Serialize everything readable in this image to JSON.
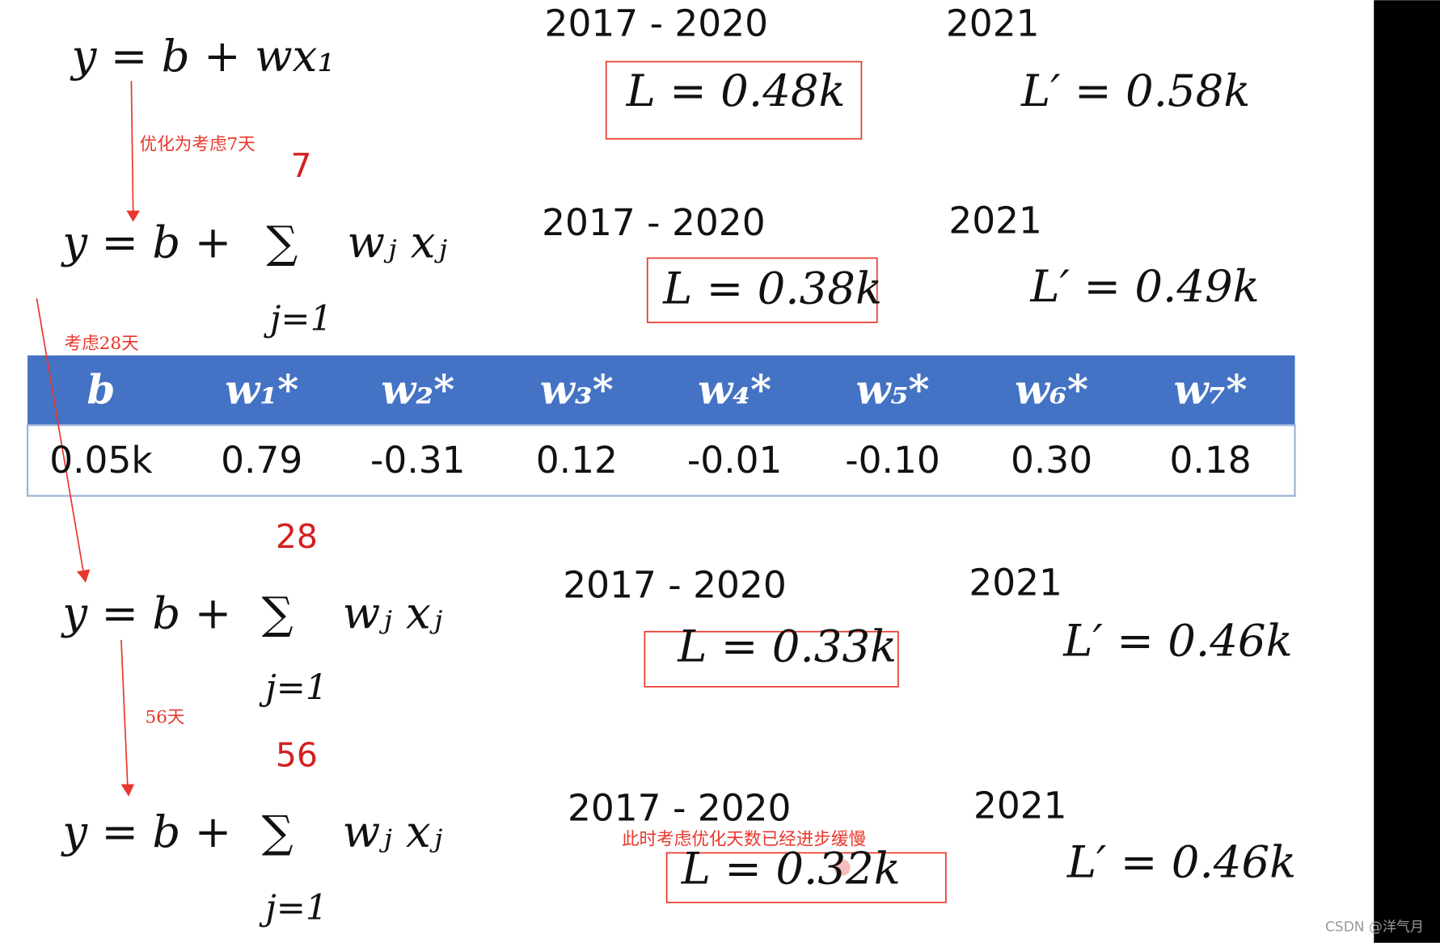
{
  "formulas": [
    {
      "equation": "y = b + wx₁",
      "period": "2017 - 2020",
      "train_loss": "L = 0.48k",
      "year": "2021",
      "test_loss": "L′ = 0.58k"
    },
    {
      "lhs": "y = b +",
      "sum": "∑",
      "upper": "7",
      "lower": "j=1",
      "term": "wⱼ xⱼ",
      "period": "2017 - 2020",
      "train_loss": "L = 0.38k",
      "year": "2021",
      "test_loss": "L′ = 0.49k"
    },
    {
      "lhs": "y = b +",
      "sum": "∑",
      "upper": "28",
      "lower": "j=1",
      "term": "wⱼ xⱼ",
      "period": "2017 - 2020",
      "train_loss": "L = 0.33k",
      "year": "2021",
      "test_loss": "L′ = 0.46k"
    },
    {
      "lhs": "y = b +",
      "sum": "∑",
      "upper": "56",
      "lower": "j=1",
      "term": "wⱼ xⱼ",
      "period": "2017 - 2020",
      "train_loss": "L = 0.32k",
      "year": "2021",
      "test_loss": "L′ = 0.46k"
    }
  ],
  "annotations": [
    "优化为考虑7天",
    "考虑28天",
    "56天",
    "此时考虑优化天数已经进步缓慢"
  ],
  "table": {
    "header": [
      "b",
      "w₁*",
      "w₂*",
      "w₃*",
      "w₄*",
      "w₅*",
      "w₆*",
      "w₇*"
    ],
    "row": [
      "0.05k",
      "0.79",
      "-0.31",
      "0.12",
      "-0.01",
      "-0.10",
      "0.30",
      "0.18"
    ]
  },
  "watermark": "CSDN @洋气月"
}
